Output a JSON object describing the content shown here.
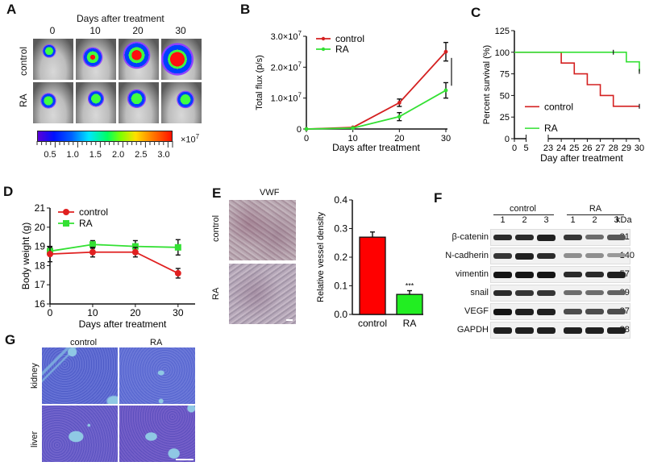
{
  "panels": {
    "A": {
      "letter": "A",
      "title": "Days after treatment",
      "columns": [
        "0",
        "10",
        "20",
        "30"
      ],
      "rows": [
        "control",
        "RA"
      ],
      "signal_intensity": [
        [
          0.35,
          0.6,
          0.8,
          1.0
        ],
        [
          0.45,
          0.5,
          0.55,
          0.5
        ]
      ],
      "colorbar": {
        "ticks": [
          "0.5",
          "1.0",
          "1.5",
          "2.0",
          "2.5",
          "3.0"
        ],
        "unit": "×10",
        "unit_exp": "7"
      }
    },
    "B": {
      "letter": "B"
    },
    "C": {
      "letter": "C"
    },
    "D": {
      "letter": "D"
    },
    "E": {
      "letter": "E",
      "image_title": "VWF",
      "rows": [
        "control",
        "RA"
      ]
    },
    "F": {
      "letter": "F",
      "groups": [
        "control",
        "RA"
      ],
      "lanes": [
        "1",
        "2",
        "3",
        "1",
        "2",
        "3"
      ],
      "kda_label": "kDa",
      "bands": [
        {
          "protein": "β-catenin",
          "kda": "-81",
          "intensity": [
            0.85,
            0.85,
            0.9,
            0.8,
            0.55,
            0.65
          ]
        },
        {
          "protein": "N-cadherin",
          "kda": "-140",
          "intensity": [
            0.8,
            0.9,
            0.85,
            0.4,
            0.4,
            0.35
          ]
        },
        {
          "protein": "vimentin",
          "kda": "-57",
          "intensity": [
            0.95,
            0.95,
            0.95,
            0.85,
            0.85,
            0.9
          ]
        },
        {
          "protein": "snail",
          "kda": "-29",
          "intensity": [
            0.85,
            0.8,
            0.8,
            0.55,
            0.55,
            0.6
          ]
        },
        {
          "protein": "VEGF",
          "kda": "-27",
          "intensity": [
            0.95,
            0.9,
            0.9,
            0.7,
            0.7,
            0.7
          ]
        },
        {
          "protein": "GAPDH",
          "kda": "-38",
          "intensity": [
            0.9,
            0.9,
            0.9,
            0.9,
            0.9,
            0.9
          ]
        }
      ]
    },
    "G": {
      "letter": "G",
      "columns": [
        "control",
        "RA"
      ],
      "rows": [
        "kidney",
        "liver"
      ]
    }
  },
  "chart_data": [
    {
      "id": "B",
      "type": "line",
      "title": "",
      "xlabel": "Days after treatment",
      "ylabel": "Total flux (p/s)",
      "x": [
        0,
        10,
        20,
        30
      ],
      "xlim": [
        0,
        30
      ],
      "ylim": [
        0,
        30000000
      ],
      "xticks": [
        "0",
        "10",
        "20",
        "30"
      ],
      "yticks": [
        {
          "value": 0,
          "label": "0"
        },
        {
          "value": 10000000,
          "label": "1.0×10",
          "exp": "7"
        },
        {
          "value": 20000000,
          "label": "2.0×10",
          "exp": "7"
        },
        {
          "value": 30000000,
          "label": "3.0×10",
          "exp": "7"
        }
      ],
      "series": [
        {
          "name": "control",
          "color": "#d42020",
          "values": [
            0,
            500000,
            8500000,
            25000000
          ],
          "errors": [
            0,
            200000,
            1200000,
            3000000
          ]
        },
        {
          "name": "RA",
          "color": "#33e033",
          "values": [
            0,
            300000,
            4000000,
            12500000
          ],
          "errors": [
            0,
            100000,
            1300000,
            2500000
          ]
        }
      ],
      "annotation": "***",
      "legend": "top-left"
    },
    {
      "id": "C",
      "type": "line",
      "subtype": "kaplan-meier",
      "xlabel": "Day after treatment",
      "ylabel": "Percent survival (%)",
      "xticks": [
        "0",
        "5",
        "23",
        "24",
        "25",
        "26",
        "27",
        "28",
        "29",
        "30"
      ],
      "yticks": [
        "0",
        "25",
        "50",
        "75",
        "100",
        "125"
      ],
      "ylim": [
        0,
        125
      ],
      "axis_break": [
        5,
        23
      ],
      "series": [
        {
          "name": "control",
          "color": "#d42020",
          "steps": [
            [
              0,
              100
            ],
            [
              24,
              100
            ],
            [
              24,
              87.5
            ],
            [
              25,
              87.5
            ],
            [
              25,
              75
            ],
            [
              26,
              75
            ],
            [
              26,
              62.5
            ],
            [
              27,
              62.5
            ],
            [
              27,
              50
            ],
            [
              28,
              50
            ],
            [
              28,
              37.5
            ],
            [
              30,
              37.5
            ]
          ],
          "censored": [
            [
              30,
              37.5
            ]
          ]
        },
        {
          "name": "RA",
          "color": "#33e033",
          "steps": [
            [
              0,
              100
            ],
            [
              29,
              100
            ],
            [
              29,
              88.9
            ],
            [
              30,
              88.9
            ],
            [
              30,
              77.8
            ]
          ],
          "censored": [
            [
              28,
              100
            ],
            [
              30,
              77.8
            ]
          ]
        }
      ],
      "legend": "bottom-left"
    },
    {
      "id": "D",
      "type": "line",
      "xlabel": "Days after treatment",
      "ylabel": "Body weight (g)",
      "x": [
        0,
        10,
        20,
        30
      ],
      "xlim": [
        0,
        34
      ],
      "ylim": [
        16,
        21
      ],
      "xticks": [
        "0",
        "10",
        "20",
        "30"
      ],
      "yticks": [
        "16",
        "17",
        "18",
        "19",
        "20",
        "21"
      ],
      "series": [
        {
          "name": "control",
          "color": "#e02020",
          "marker": "circle",
          "values": [
            18.6,
            18.7,
            18.7,
            17.6
          ],
          "errors": [
            0.4,
            0.25,
            0.25,
            0.25
          ]
        },
        {
          "name": "RA",
          "color": "#33e033",
          "marker": "square",
          "values": [
            18.75,
            19.1,
            19.0,
            18.95
          ],
          "errors": [
            0.2,
            0.2,
            0.3,
            0.4
          ]
        }
      ],
      "legend": "top-left"
    },
    {
      "id": "E",
      "type": "bar",
      "categories": [
        "control",
        "RA"
      ],
      "values": [
        0.27,
        0.07
      ],
      "errors": [
        0.018,
        0.013
      ],
      "colors": [
        "#ff0000",
        "#22ee22"
      ],
      "ylabel": "Relative vessel density",
      "xlabel": "",
      "ylim": [
        0,
        0.4
      ],
      "yticks": [
        "0.0",
        "0.1",
        "0.2",
        "0.3",
        "0.4"
      ],
      "annotation": {
        "category": "RA",
        "text": "***"
      }
    }
  ]
}
